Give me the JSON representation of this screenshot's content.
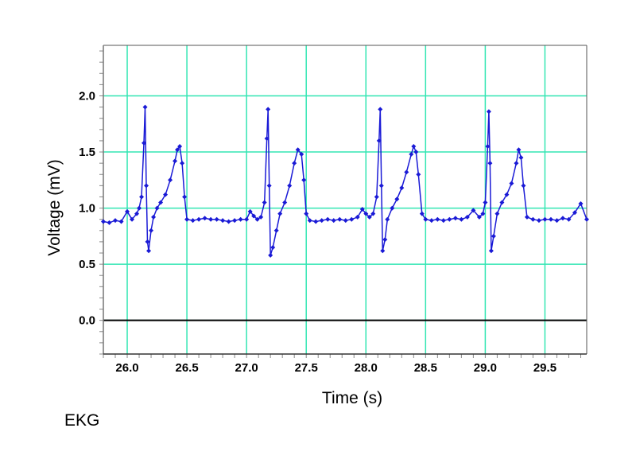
{
  "chart_data": {
    "type": "line",
    "xlabel": "Time (s)",
    "ylabel": "Voltage (mV)",
    "xlim": [
      25.8,
      29.85
    ],
    "ylim": [
      -0.3,
      2.45
    ],
    "x_ticks": [
      26.0,
      26.5,
      27.0,
      27.5,
      28.0,
      28.5,
      29.0,
      29.5
    ],
    "x_tick_labels": [
      "26.0",
      "26.5",
      "27.0",
      "27.5",
      "28.0",
      "28.5",
      "29.0",
      "29.5"
    ],
    "y_ticks": [
      0.0,
      0.5,
      1.0,
      1.5,
      2.0
    ],
    "y_tick_labels": [
      "0.0",
      "0.5",
      "1.0",
      "1.5",
      "2.0"
    ],
    "grid": true,
    "grid_color": "#33e6b3",
    "zero_line": true,
    "series": [
      {
        "color": "#1a1ad6",
        "markers": "diamond",
        "x": [
          25.8,
          25.85,
          25.9,
          25.95,
          26.0,
          26.04,
          26.08,
          26.1,
          26.12,
          26.14,
          26.15,
          26.16,
          26.17,
          26.18,
          26.2,
          26.22,
          26.25,
          26.28,
          26.32,
          26.36,
          26.4,
          26.42,
          26.44,
          26.46,
          26.48,
          26.5,
          26.55,
          26.6,
          26.65,
          26.7,
          26.75,
          26.8,
          26.85,
          26.9,
          26.95,
          27.0,
          27.03,
          27.06,
          27.09,
          27.12,
          27.15,
          27.17,
          27.18,
          27.19,
          27.2,
          27.22,
          27.25,
          27.28,
          27.32,
          27.36,
          27.4,
          27.43,
          27.46,
          27.48,
          27.5,
          27.53,
          27.58,
          27.63,
          27.68,
          27.73,
          27.78,
          27.83,
          27.88,
          27.93,
          27.97,
          28.0,
          28.03,
          28.06,
          28.09,
          28.11,
          28.12,
          28.13,
          28.14,
          28.16,
          28.18,
          28.22,
          28.26,
          28.3,
          28.34,
          28.38,
          28.4,
          28.42,
          28.44,
          28.47,
          28.5,
          28.55,
          28.6,
          28.65,
          28.7,
          28.75,
          28.8,
          28.85,
          28.9,
          28.95,
          28.98,
          29.0,
          29.02,
          29.03,
          29.04,
          29.05,
          29.07,
          29.1,
          29.14,
          29.18,
          29.22,
          29.26,
          29.28,
          29.3,
          29.32,
          29.35,
          29.4,
          29.45,
          29.5,
          29.55,
          29.6,
          29.65,
          29.7,
          29.75,
          29.8,
          29.85
        ],
        "y": [
          0.88,
          0.87,
          0.89,
          0.88,
          0.97,
          0.9,
          0.95,
          1.0,
          1.1,
          1.58,
          1.9,
          1.2,
          0.7,
          0.62,
          0.8,
          0.92,
          1.0,
          1.05,
          1.12,
          1.25,
          1.42,
          1.52,
          1.55,
          1.4,
          1.1,
          0.9,
          0.89,
          0.9,
          0.91,
          0.9,
          0.9,
          0.89,
          0.88,
          0.89,
          0.9,
          0.9,
          0.97,
          0.93,
          0.9,
          0.92,
          1.05,
          1.62,
          1.88,
          1.2,
          0.58,
          0.65,
          0.8,
          0.95,
          1.05,
          1.2,
          1.4,
          1.52,
          1.48,
          1.25,
          0.95,
          0.89,
          0.88,
          0.89,
          0.9,
          0.89,
          0.9,
          0.89,
          0.9,
          0.92,
          0.99,
          0.95,
          0.92,
          0.95,
          1.1,
          1.6,
          1.88,
          1.2,
          0.62,
          0.72,
          0.9,
          1.0,
          1.08,
          1.18,
          1.32,
          1.48,
          1.55,
          1.5,
          1.3,
          0.95,
          0.9,
          0.89,
          0.9,
          0.89,
          0.9,
          0.91,
          0.9,
          0.92,
          0.98,
          0.92,
          0.95,
          1.05,
          1.55,
          1.86,
          1.4,
          0.62,
          0.75,
          0.95,
          1.05,
          1.12,
          1.22,
          1.4,
          1.52,
          1.45,
          1.2,
          0.92,
          0.9,
          0.89,
          0.9,
          0.9,
          0.89,
          0.91,
          0.9,
          0.96,
          1.04,
          0.9
        ]
      }
    ]
  },
  "footer": {
    "label": "EKG"
  }
}
